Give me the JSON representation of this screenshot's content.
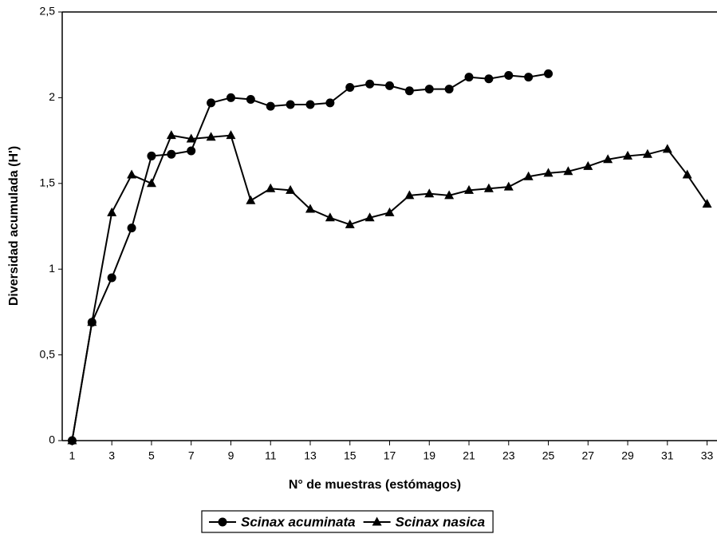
{
  "chart_data": {
    "type": "line",
    "x_label": "N° de muestras (estómagos)",
    "y_label": "Diversidad acumulada (H')",
    "xlim": [
      0.5,
      33.5
    ],
    "xticks": [
      1,
      3,
      5,
      7,
      9,
      11,
      13,
      15,
      17,
      19,
      21,
      23,
      25,
      27,
      29,
      31,
      33
    ],
    "ylim": [
      0,
      2.5
    ],
    "yticks": [
      0,
      {
        "value": 0.5,
        "label": "0,5"
      },
      1,
      {
        "value": 1.5,
        "label": "1,5"
      },
      2,
      {
        "value": 2.5,
        "label": "2,5"
      }
    ],
    "legend": "bottom",
    "series": [
      {
        "name": "Scinax acuminata",
        "color": "#000000",
        "marker": "circle",
        "x": [
          1,
          2,
          3,
          4,
          5,
          6,
          7,
          8,
          9,
          10,
          11,
          12,
          13,
          14,
          15,
          16,
          17,
          18,
          19,
          20,
          21,
          22,
          23,
          24,
          25
        ],
        "values": [
          0,
          0.69,
          0.95,
          1.24,
          1.66,
          1.67,
          1.69,
          1.97,
          2.0,
          1.99,
          1.95,
          1.96,
          1.96,
          1.97,
          2.06,
          2.08,
          2.07,
          2.04,
          2.05,
          2.05,
          2.12,
          2.11,
          2.13,
          2.12,
          2.14
        ]
      },
      {
        "name": "Scinax nasica",
        "color": "#000000",
        "marker": "triangle",
        "x": [
          1,
          2,
          3,
          4,
          5,
          6,
          7,
          8,
          9,
          10,
          11,
          12,
          13,
          14,
          15,
          16,
          17,
          18,
          19,
          20,
          21,
          22,
          23,
          24,
          25,
          26,
          27,
          28,
          29,
          30,
          31,
          32,
          33
        ],
        "values": [
          0,
          0.69,
          1.33,
          1.55,
          1.5,
          1.78,
          1.76,
          1.77,
          1.78,
          1.4,
          1.47,
          1.46,
          1.35,
          1.3,
          1.26,
          1.3,
          1.33,
          1.43,
          1.44,
          1.43,
          1.46,
          1.47,
          1.48,
          1.54,
          1.56,
          1.57,
          1.6,
          1.64,
          1.66,
          1.67,
          1.7,
          1.55,
          1.38
        ]
      }
    ]
  }
}
